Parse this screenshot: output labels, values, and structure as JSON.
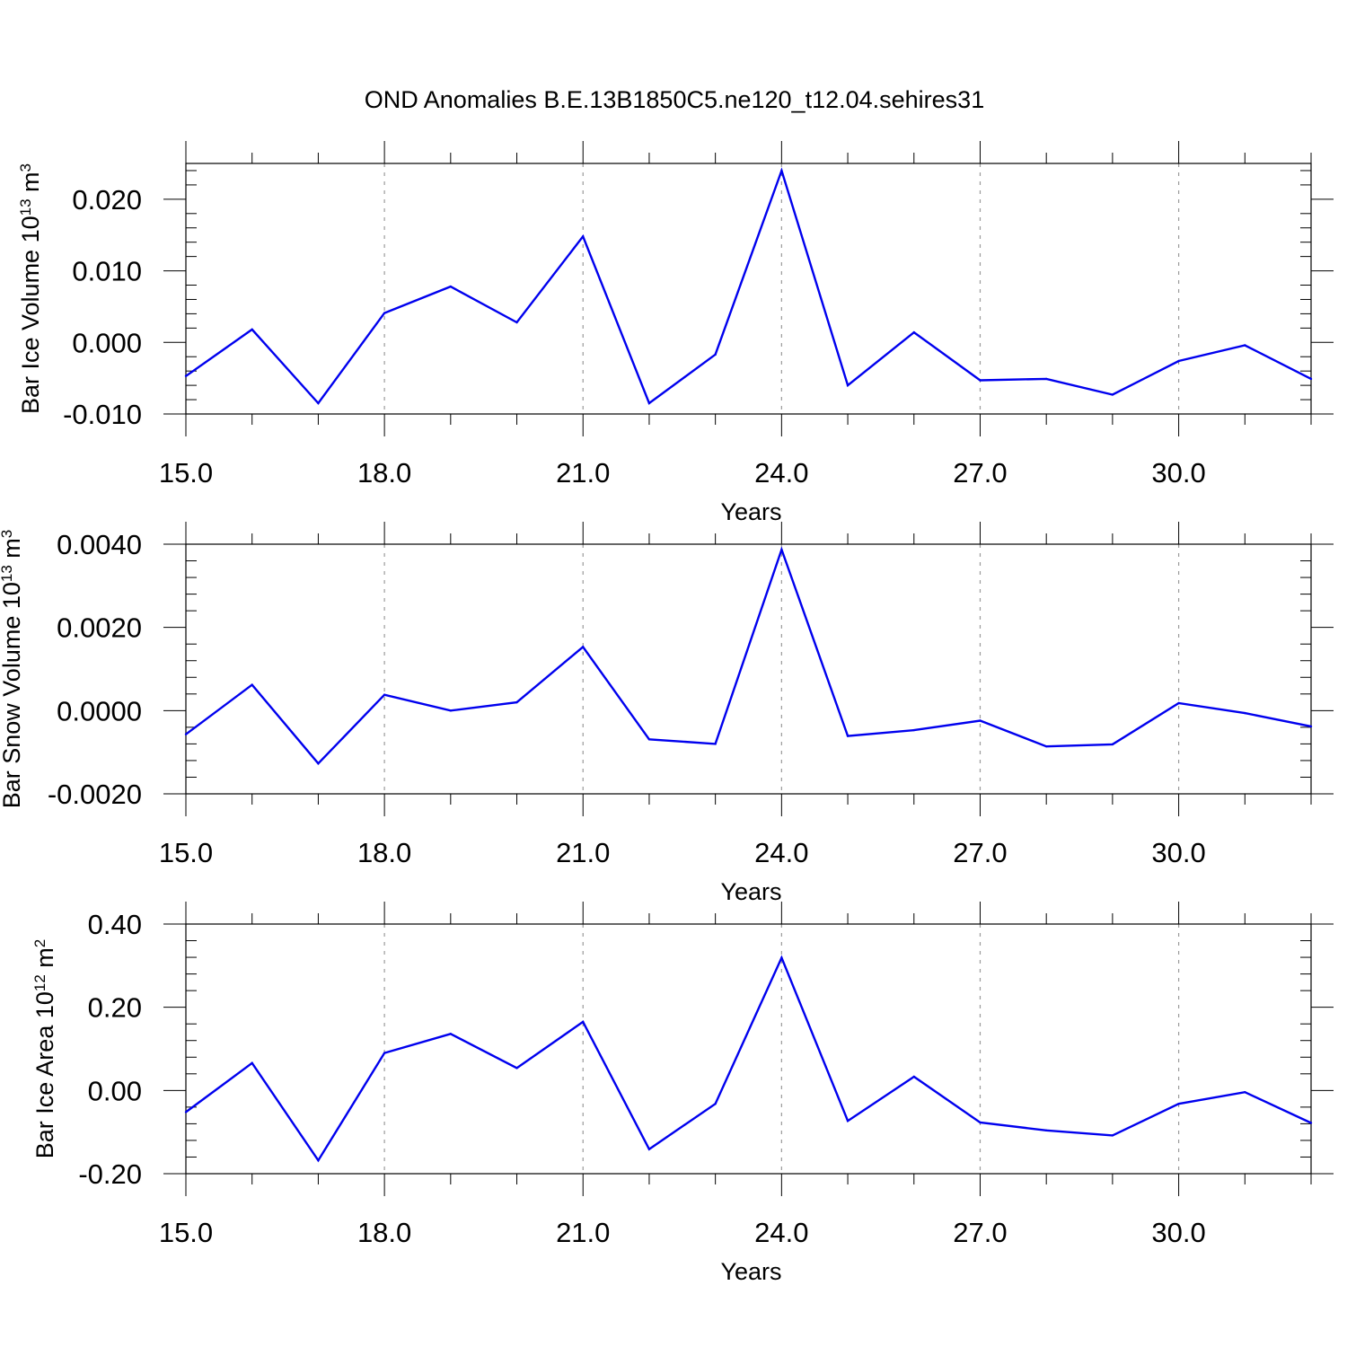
{
  "figure": {
    "title": "OND Anomalies B.E.13B1850C5.ne120_t12.04.sehires31"
  },
  "chart_data": [
    {
      "type": "line",
      "xlabel": "Years",
      "ylabel": "Bar Ice Volume 10",
      "ylabel_sup": "13",
      "ylabel_unit": " m",
      "ylabel_unit_sup": "3",
      "xlim": [
        15,
        32
      ],
      "ylim": [
        -0.01,
        0.025
      ],
      "xticks": [
        15,
        18,
        21,
        24,
        27,
        30
      ],
      "xtick_labels": [
        "15.0",
        "18.0",
        "21.0",
        "24.0",
        "27.0",
        "30.0"
      ],
      "yticks": [
        -0.01,
        0.0,
        0.01,
        0.02
      ],
      "ytick_labels": [
        "-0.010",
        "0.000",
        "0.010",
        "0.020"
      ],
      "grid": "vertical dashed at major x ticks",
      "line_color": "#0000ee",
      "x": [
        15,
        16,
        17,
        18,
        19,
        20,
        21,
        22,
        23,
        24,
        25,
        26,
        27,
        28,
        29,
        30,
        31,
        32
      ],
      "series": [
        {
          "values": [
            -0.0047,
            0.0018,
            -0.0085,
            0.0041,
            0.0078,
            0.0028,
            0.0148,
            -0.0085,
            -0.0017,
            0.024,
            -0.006,
            0.0014,
            -0.0053,
            -0.0051,
            -0.0073,
            -0.0026,
            -0.0004,
            -0.0051
          ]
        }
      ]
    },
    {
      "type": "line",
      "xlabel": "Years",
      "ylabel": "Bar Snow Volume 10",
      "ylabel_sup": "13",
      "ylabel_unit": " m",
      "ylabel_unit_sup": "3",
      "xlim": [
        15,
        32
      ],
      "ylim": [
        -0.002,
        0.004
      ],
      "xticks": [
        15,
        18,
        21,
        24,
        27,
        30
      ],
      "xtick_labels": [
        "15.0",
        "18.0",
        "21.0",
        "24.0",
        "27.0",
        "30.0"
      ],
      "yticks": [
        -0.002,
        0.0,
        0.002,
        0.004
      ],
      "ytick_labels": [
        "-0.0020",
        "0.0000",
        "0.0020",
        "0.0040"
      ],
      "grid": "vertical dashed at major x ticks",
      "line_color": "#0000ee",
      "x": [
        15,
        16,
        17,
        18,
        19,
        20,
        21,
        22,
        23,
        24,
        25,
        26,
        27,
        28,
        29,
        30,
        31,
        32
      ],
      "series": [
        {
          "values": [
            -0.00057,
            0.00062,
            -0.00127,
            0.00038,
            0.0,
            0.0002,
            0.00153,
            -0.00069,
            -0.0008,
            0.00387,
            -0.00061,
            -0.00047,
            -0.00024,
            -0.00086,
            -0.00081,
            0.00018,
            -6e-05,
            -0.00038
          ]
        }
      ]
    },
    {
      "type": "line",
      "xlabel": "Years",
      "ylabel": "Bar Ice Area 10",
      "ylabel_sup": "12",
      "ylabel_unit": " m",
      "ylabel_unit_sup": "2",
      "xlim": [
        15,
        32
      ],
      "ylim": [
        -0.2,
        0.4
      ],
      "xticks": [
        15,
        18,
        21,
        24,
        27,
        30
      ],
      "xtick_labels": [
        "15.0",
        "18.0",
        "21.0",
        "24.0",
        "27.0",
        "30.0"
      ],
      "yticks": [
        -0.2,
        0.0,
        0.2,
        0.4
      ],
      "ytick_labels": [
        "-0.20",
        "0.00",
        "0.20",
        "0.40"
      ],
      "grid": "vertical dashed at major x ticks",
      "line_color": "#0000ee",
      "x": [
        15,
        16,
        17,
        18,
        19,
        20,
        21,
        22,
        23,
        24,
        25,
        26,
        27,
        28,
        29,
        30,
        31,
        32
      ],
      "series": [
        {
          "values": [
            -0.052,
            0.066,
            -0.168,
            0.09,
            0.136,
            0.054,
            0.165,
            -0.141,
            -0.032,
            0.319,
            -0.073,
            0.033,
            -0.077,
            -0.096,
            -0.108,
            -0.032,
            -0.004,
            -0.078
          ]
        }
      ]
    }
  ]
}
